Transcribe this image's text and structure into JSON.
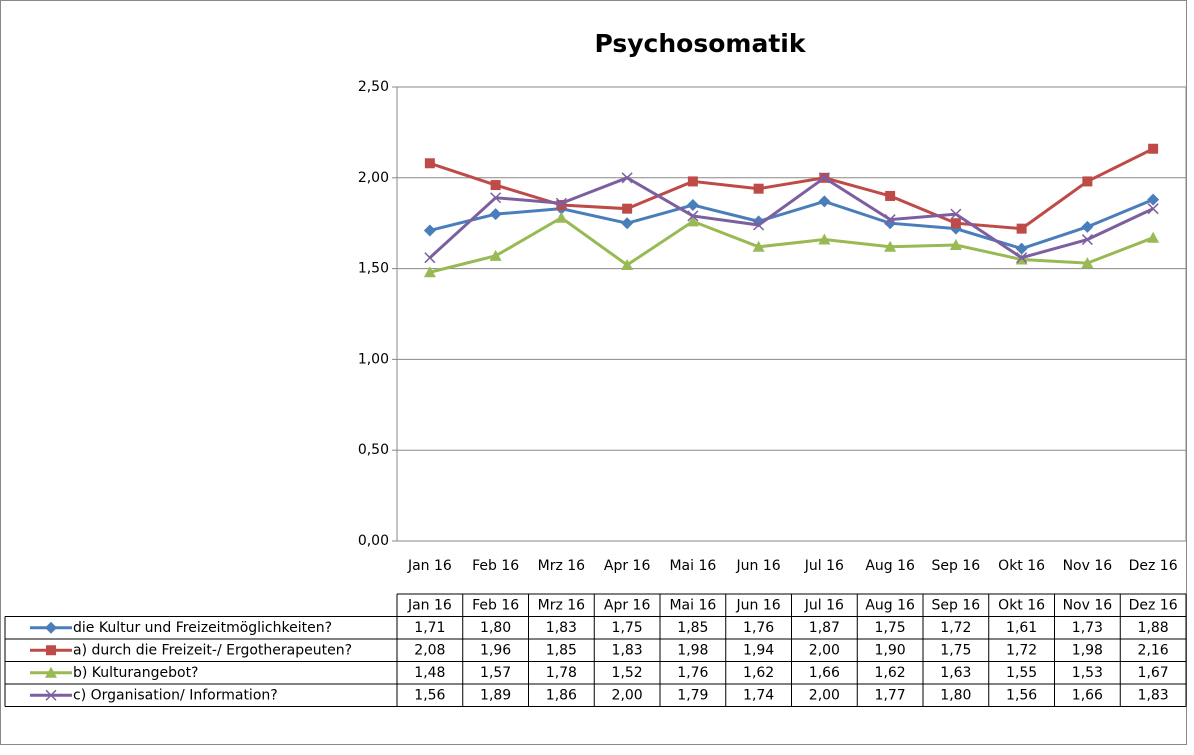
{
  "chart_data": {
    "type": "line",
    "title": "Psychosomatik",
    "categories": [
      "Jan 16",
      "Feb 16",
      "Mrz 16",
      "Apr 16",
      "Mai 16",
      "Jun 16",
      "Jul 16",
      "Aug 16",
      "Sep 16",
      "Okt 16",
      "Nov 16",
      "Dez 16"
    ],
    "ylim": [
      0,
      2.5
    ],
    "yticks": [
      {
        "value": 0,
        "label": "0,00"
      },
      {
        "value": 0.5,
        "label": "0,50"
      },
      {
        "value": 1,
        "label": "1,00"
      },
      {
        "value": 1.5,
        "label": "1,50"
      },
      {
        "value": 2,
        "label": "2,00"
      },
      {
        "value": 2.5,
        "label": "2,50"
      }
    ],
    "grid": true,
    "series": [
      {
        "name": "die Kultur und Freizeitmöglichkeiten?",
        "color": "#4a7ebb",
        "marker": "diamond",
        "values": [
          1.71,
          1.8,
          1.83,
          1.75,
          1.85,
          1.76,
          1.87,
          1.75,
          1.72,
          1.61,
          1.73,
          1.88
        ],
        "value_labels": [
          "1,71",
          "1,80",
          "1,83",
          "1,75",
          "1,85",
          "1,76",
          "1,87",
          "1,75",
          "1,72",
          "1,61",
          "1,73",
          "1,88"
        ]
      },
      {
        "name": "a) durch die Freizeit-/ Ergotherapeuten?",
        "color": "#be4b48",
        "marker": "square",
        "values": [
          2.08,
          1.96,
          1.85,
          1.83,
          1.98,
          1.94,
          2.0,
          1.9,
          1.75,
          1.72,
          1.98,
          2.16
        ],
        "value_labels": [
          "2,08",
          "1,96",
          "1,85",
          "1,83",
          "1,98",
          "1,94",
          "2,00",
          "1,90",
          "1,75",
          "1,72",
          "1,98",
          "2,16"
        ]
      },
      {
        "name": "b) Kulturangebot?",
        "color": "#98b954",
        "marker": "triangle",
        "values": [
          1.48,
          1.57,
          1.78,
          1.52,
          1.76,
          1.62,
          1.66,
          1.62,
          1.63,
          1.55,
          1.53,
          1.67
        ],
        "value_labels": [
          "1,48",
          "1,57",
          "1,78",
          "1,52",
          "1,76",
          "1,62",
          "1,66",
          "1,62",
          "1,63",
          "1,55",
          "1,53",
          "1,67"
        ]
      },
      {
        "name": "c) Organisation/ Information?",
        "color": "#7d5fa0",
        "marker": "x",
        "values": [
          1.56,
          1.89,
          1.86,
          2.0,
          1.79,
          1.74,
          2.0,
          1.77,
          1.8,
          1.56,
          1.66,
          1.83
        ],
        "value_labels": [
          "1,56",
          "1,89",
          "1,86",
          "2,00",
          "1,79",
          "1,74",
          "2,00",
          "1,77",
          "1,80",
          "1,56",
          "1,66",
          "1,83"
        ]
      }
    ]
  }
}
